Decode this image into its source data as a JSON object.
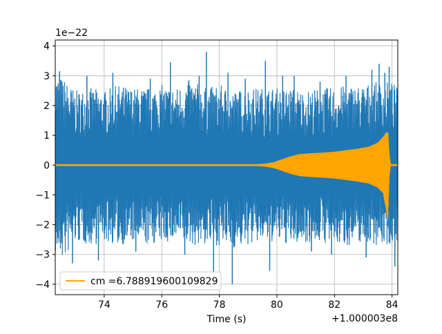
{
  "chart_data": {
    "type": "line",
    "xlabel": "Time (s)",
    "ylabel": "",
    "x_offset_label": "+1.000003e8",
    "y_scale_label": "1e−22",
    "xlim": [
      72.3,
      84.2
    ],
    "ylim": [
      -4.35,
      4.2
    ],
    "x_ticks": [
      74,
      76,
      78,
      80,
      82,
      84
    ],
    "x_tick_labels": [
      "74",
      "76",
      "78",
      "80",
      "82",
      "84"
    ],
    "y_ticks": [
      -4,
      -3,
      -2,
      -1,
      0,
      1,
      2,
      3,
      4
    ],
    "y_tick_labels": [
      "−4",
      "−3",
      "−2",
      "−1",
      "0",
      "1",
      "2",
      "3",
      "4"
    ],
    "grid": true,
    "legend_position": "lower-left",
    "series": [
      {
        "name": "",
        "color": "#1f77b4",
        "description_type": "noise",
        "envelope_pos": [
          [
            72.3,
            3.1
          ],
          [
            72.6,
            2.9
          ],
          [
            73.0,
            2.5
          ],
          [
            73.5,
            2.6
          ],
          [
            74.0,
            2.5
          ],
          [
            74.5,
            2.7
          ],
          [
            75.0,
            2.6
          ],
          [
            75.5,
            2.6
          ],
          [
            76.0,
            2.7
          ],
          [
            76.5,
            2.6
          ],
          [
            77.0,
            2.9
          ],
          [
            77.5,
            2.6
          ],
          [
            78.0,
            2.7
          ],
          [
            78.5,
            2.5
          ],
          [
            79.0,
            2.6
          ],
          [
            79.5,
            2.6
          ],
          [
            80.0,
            2.6
          ],
          [
            80.5,
            2.6
          ],
          [
            81.0,
            2.5
          ],
          [
            81.5,
            2.6
          ],
          [
            82.0,
            2.6
          ],
          [
            82.5,
            2.7
          ],
          [
            83.0,
            2.7
          ],
          [
            83.5,
            2.8
          ],
          [
            84.0,
            2.8
          ],
          [
            84.2,
            2.6
          ]
        ],
        "envelope_neg": [
          [
            72.3,
            -3.0
          ],
          [
            72.6,
            -3.2
          ],
          [
            73.0,
            -2.6
          ],
          [
            73.5,
            -2.7
          ],
          [
            74.0,
            -2.6
          ],
          [
            74.5,
            -2.7
          ],
          [
            75.0,
            -2.6
          ],
          [
            75.5,
            -2.7
          ],
          [
            76.0,
            -2.6
          ],
          [
            76.5,
            -2.6
          ],
          [
            77.0,
            -2.7
          ],
          [
            77.5,
            -2.7
          ],
          [
            78.0,
            -2.7
          ],
          [
            78.5,
            -2.8
          ],
          [
            79.0,
            -2.7
          ],
          [
            79.5,
            -2.6
          ],
          [
            80.0,
            -2.6
          ],
          [
            80.5,
            -2.7
          ],
          [
            81.0,
            -2.6
          ],
          [
            81.5,
            -2.6
          ],
          [
            82.0,
            -2.7
          ],
          [
            82.5,
            -2.7
          ],
          [
            83.0,
            -2.6
          ],
          [
            83.5,
            -2.7
          ],
          [
            84.0,
            -2.7
          ],
          [
            84.2,
            -2.5
          ]
        ],
        "spikes": [
          [
            72.45,
            3.15
          ],
          [
            72.9,
            -3.3
          ],
          [
            73.4,
            3.0
          ],
          [
            73.8,
            -3.2
          ],
          [
            74.3,
            3.1
          ],
          [
            75.1,
            -2.9
          ],
          [
            75.6,
            2.9
          ],
          [
            76.3,
            3.45
          ],
          [
            76.8,
            -3.0
          ],
          [
            77.3,
            3.0
          ],
          [
            77.55,
            3.8
          ],
          [
            77.8,
            -3.6
          ],
          [
            78.3,
            3.1
          ],
          [
            78.45,
            -4.0
          ],
          [
            78.9,
            2.9
          ],
          [
            79.6,
            3.5
          ],
          [
            79.75,
            -3.55
          ],
          [
            80.2,
            3.0
          ],
          [
            80.6,
            3.0
          ],
          [
            81.2,
            -2.9
          ],
          [
            81.5,
            2.8
          ],
          [
            81.9,
            -3.0
          ],
          [
            82.4,
            3.0
          ],
          [
            83.1,
            -3.1
          ],
          [
            83.3,
            3.2
          ],
          [
            83.55,
            3.4
          ],
          [
            83.75,
            3.1
          ],
          [
            83.9,
            3.3
          ],
          [
            84.1,
            -3.4
          ]
        ]
      },
      {
        "name": "cm =6.788919600109829",
        "color": "#ffa500",
        "description_type": "chirp",
        "envelope": [
          [
            72.3,
            0.03
          ],
          [
            79.3,
            0.03
          ],
          [
            79.6,
            0.05
          ],
          [
            79.9,
            0.1
          ],
          [
            80.2,
            0.2
          ],
          [
            80.5,
            0.3
          ],
          [
            80.8,
            0.37
          ],
          [
            81.2,
            0.4
          ],
          [
            81.6,
            0.42
          ],
          [
            82.0,
            0.45
          ],
          [
            82.4,
            0.5
          ],
          [
            82.8,
            0.55
          ],
          [
            83.2,
            0.62
          ],
          [
            83.5,
            0.75
          ],
          [
            83.7,
            0.95
          ],
          [
            83.8,
            1.1
          ],
          [
            83.86,
            1.1
          ],
          [
            83.9,
            0.4
          ],
          [
            83.95,
            0.03
          ],
          [
            84.2,
            0.03
          ]
        ],
        "envelope_neg": [
          [
            83.7,
            -1.0
          ],
          [
            83.8,
            -1.5
          ],
          [
            83.85,
            -1.95
          ],
          [
            83.9,
            -0.5
          ]
        ]
      }
    ]
  }
}
